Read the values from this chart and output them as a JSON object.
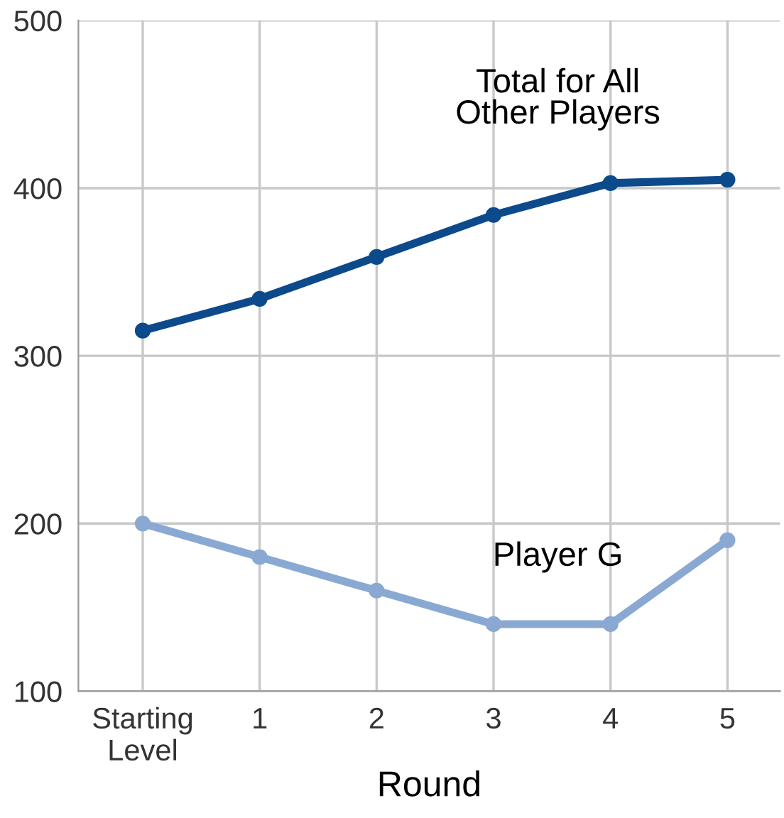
{
  "chart_data": {
    "type": "line",
    "xlabel": "Round",
    "categories": [
      "Starting\nLevel",
      "1",
      "2",
      "3",
      "4",
      "5"
    ],
    "series": [
      {
        "name": "Total for All\nOther Players",
        "color": "#0d4a8c",
        "values": [
          315,
          334,
          359,
          384,
          403,
          405
        ]
      },
      {
        "name": "Player G",
        "color": "#8aa9d2",
        "values": [
          200,
          180,
          160,
          140,
          140,
          190
        ]
      }
    ],
    "ylim": [
      100,
      500
    ],
    "yticks": [
      100,
      200,
      300,
      400,
      500
    ],
    "grid": true,
    "marker": "circle",
    "line_style": "solid",
    "legend": false
  }
}
